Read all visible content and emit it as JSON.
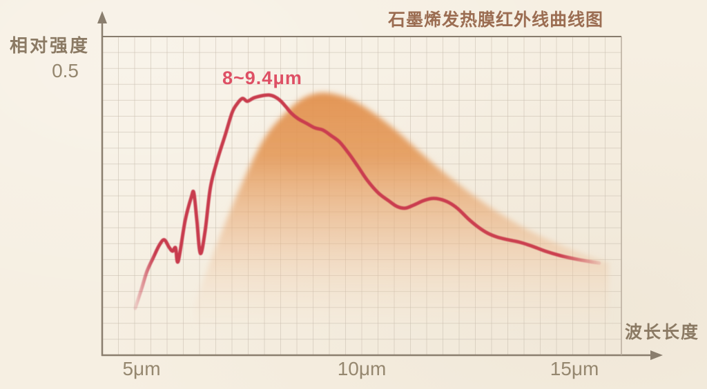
{
  "chart_data": {
    "type": "line",
    "title": "石墨烯发热膜红外线曲线图",
    "ylabel": "相对强度",
    "xlabel": "波长长度",
    "y_tick_labels": [
      "0.5"
    ],
    "x_tick_labels": [
      "5μm",
      "10μm",
      "15μm"
    ],
    "x_ticks_um": [
      5,
      10,
      15
    ],
    "annotation": {
      "text": "8~9.4μm",
      "near_x_um": 8.0,
      "near_intensity": 0.49
    },
    "xlim_um": [
      4.1,
      16.9
    ],
    "ylim_intensity": [
      0,
      0.56
    ],
    "grid": true,
    "legend": "none",
    "series": [
      {
        "name": "emission-band-area",
        "type": "area",
        "color": "#e2914e",
        "points": [
          [
            6.27,
            0.085
          ],
          [
            6.56,
            0.152
          ],
          [
            7.19,
            0.274
          ],
          [
            7.83,
            0.378
          ],
          [
            8.38,
            0.43
          ],
          [
            8.78,
            0.455
          ],
          [
            9.17,
            0.464
          ],
          [
            9.57,
            0.46
          ],
          [
            9.97,
            0.448
          ],
          [
            10.44,
            0.425
          ],
          [
            10.92,
            0.396
          ],
          [
            11.48,
            0.357
          ],
          [
            12.03,
            0.321
          ],
          [
            12.67,
            0.283
          ],
          [
            13.3,
            0.25
          ],
          [
            14.02,
            0.218
          ],
          [
            14.73,
            0.193
          ],
          [
            15.37,
            0.174
          ],
          [
            15.79,
            0.163
          ]
        ]
      },
      {
        "name": "infrared-intensity-curve",
        "type": "line",
        "color": "#c83b4e",
        "points": [
          [
            4.9,
            0.083
          ],
          [
            5.05,
            0.118
          ],
          [
            5.17,
            0.148
          ],
          [
            5.32,
            0.173
          ],
          [
            5.46,
            0.195
          ],
          [
            5.57,
            0.204
          ],
          [
            5.68,
            0.191
          ],
          [
            5.76,
            0.184
          ],
          [
            5.83,
            0.19
          ],
          [
            5.89,
            0.166
          ],
          [
            6.05,
            0.238
          ],
          [
            6.19,
            0.279
          ],
          [
            6.25,
            0.287
          ],
          [
            6.32,
            0.238
          ],
          [
            6.4,
            0.18
          ],
          [
            6.51,
            0.22
          ],
          [
            6.63,
            0.296
          ],
          [
            6.79,
            0.345
          ],
          [
            6.97,
            0.389
          ],
          [
            7.13,
            0.429
          ],
          [
            7.25,
            0.445
          ],
          [
            7.37,
            0.454
          ],
          [
            7.48,
            0.449
          ],
          [
            7.63,
            0.455
          ],
          [
            7.83,
            0.459
          ],
          [
            7.98,
            0.46
          ],
          [
            8.11,
            0.457
          ],
          [
            8.24,
            0.45
          ],
          [
            8.37,
            0.439
          ],
          [
            8.49,
            0.428
          ],
          [
            8.65,
            0.418
          ],
          [
            8.84,
            0.41
          ],
          [
            9.03,
            0.402
          ],
          [
            9.22,
            0.398
          ],
          [
            9.41,
            0.388
          ],
          [
            9.6,
            0.377
          ],
          [
            9.81,
            0.357
          ],
          [
            10.02,
            0.334
          ],
          [
            10.24,
            0.309
          ],
          [
            10.49,
            0.287
          ],
          [
            10.73,
            0.273
          ],
          [
            10.92,
            0.263
          ],
          [
            11.11,
            0.26
          ],
          [
            11.32,
            0.266
          ],
          [
            11.52,
            0.273
          ],
          [
            11.71,
            0.277
          ],
          [
            11.9,
            0.276
          ],
          [
            12.11,
            0.27
          ],
          [
            12.32,
            0.259
          ],
          [
            12.56,
            0.241
          ],
          [
            12.78,
            0.227
          ],
          [
            13.0,
            0.216
          ],
          [
            13.22,
            0.209
          ],
          [
            13.48,
            0.204
          ],
          [
            13.73,
            0.2
          ],
          [
            14.02,
            0.193
          ],
          [
            14.33,
            0.184
          ],
          [
            14.68,
            0.176
          ],
          [
            15.03,
            0.17
          ],
          [
            15.32,
            0.166
          ],
          [
            15.57,
            0.163
          ]
        ]
      }
    ],
    "colors": {
      "background": "#f6efe2",
      "grid_line": "#c9beae",
      "axis": "#8a7e6e",
      "plot_border_top": "#877c6d",
      "plot_border_right": "#b7ab9c",
      "title_text": "#9b6d52",
      "axis_label_text": "#8b7a64",
      "tick_text": "#95876f",
      "annotation_text": "#de5065",
      "curve": "#c83b4e",
      "area_fill": "#e2914e"
    }
  }
}
